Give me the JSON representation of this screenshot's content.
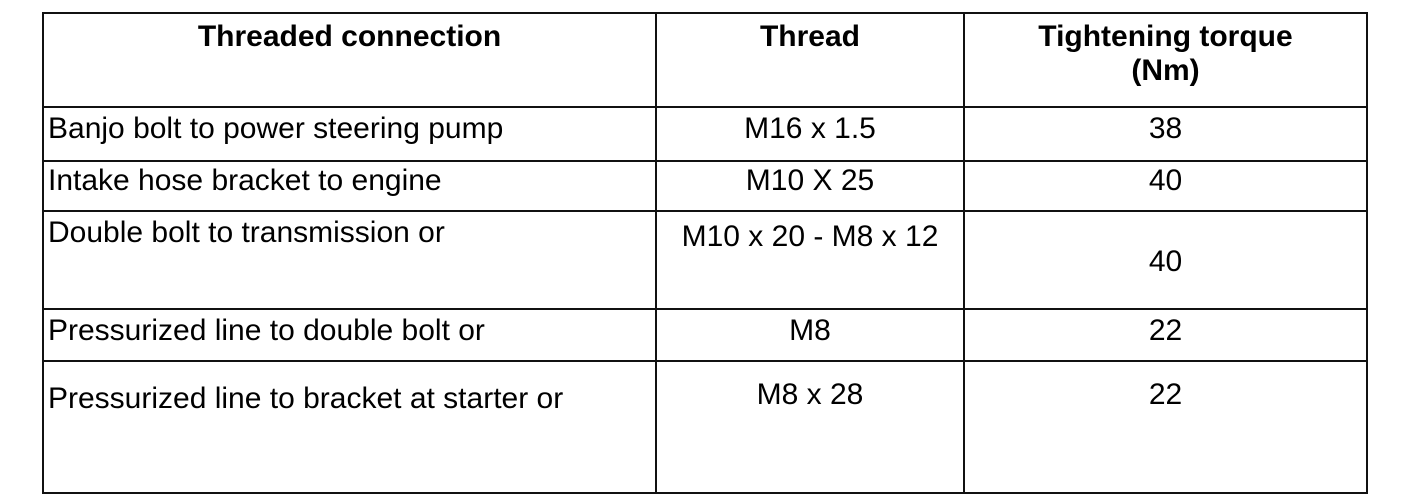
{
  "table": {
    "headers": [
      "Threaded connection",
      "Thread",
      "Tightening torque (Nm)"
    ],
    "rows": [
      {
        "connection": "Banjo bolt to power steering pump",
        "thread": "M16 x 1.5",
        "torque": "38"
      },
      {
        "connection": "Intake hose bracket to engine",
        "thread": "M10 X 25",
        "torque": "40"
      },
      {
        "connection": "Double bolt to transmission or",
        "thread": "M10 x 20 - M8 x 12",
        "torque": "40"
      },
      {
        "connection": "Pressurized line to double bolt or",
        "thread": "M8",
        "torque": "22"
      },
      {
        "connection": "Pressurized line to bracket at starter or",
        "thread": "M8 x 28",
        "torque": "22"
      }
    ]
  }
}
